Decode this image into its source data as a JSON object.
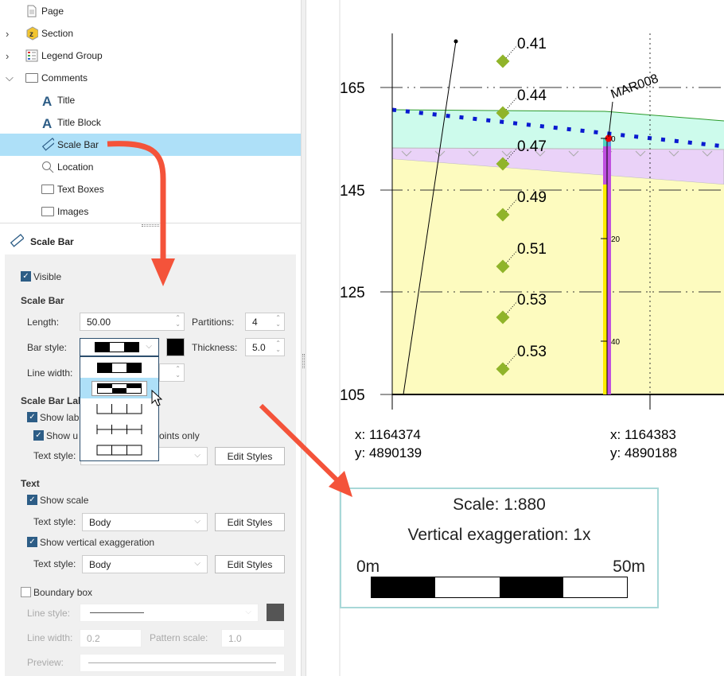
{
  "tree": {
    "items": [
      {
        "label": "Page",
        "icon": "page-icon",
        "expand": ""
      },
      {
        "label": "Section",
        "icon": "section-icon",
        "expand": "collapsed"
      },
      {
        "label": "Legend Group",
        "icon": "legend-icon",
        "expand": "collapsed"
      },
      {
        "label": "Comments",
        "icon": "folder-icon",
        "expand": "expanded"
      },
      {
        "label": "Title",
        "icon": "text-a-icon",
        "expand": ""
      },
      {
        "label": "Title Block",
        "icon": "text-a-icon",
        "expand": ""
      },
      {
        "label": "Scale Bar",
        "icon": "ruler-icon",
        "expand": "",
        "selected": true
      },
      {
        "label": "Location",
        "icon": "magnifier-icon",
        "expand": ""
      },
      {
        "label": "Text Boxes",
        "icon": "folder-icon",
        "expand": ""
      },
      {
        "label": "Images",
        "icon": "folder-icon",
        "expand": ""
      }
    ]
  },
  "props": {
    "title": "Scale Bar",
    "visible_label": "Visible",
    "scale_bar_heading": "Scale Bar",
    "length_label": "Length:",
    "length_value": "50.00",
    "partitions_label": "Partitions:",
    "partitions_value": "4",
    "bar_style_label": "Bar style:",
    "thickness_label": "Thickness:",
    "thickness_value": "5.0",
    "line_width_label": "Line width:",
    "labels_heading": "Scale Bar Labe",
    "show_labels": "Show lab",
    "show_units": "Show u",
    "show_units_tail": "oints only",
    "text_style_label": "Text style:",
    "edit_styles": "Edit Styles",
    "text_heading": "Text",
    "show_scale": "Show scale",
    "body": "Body",
    "show_ve": "Show vertical exaggeration",
    "boundary_box": "Boundary box",
    "line_style_label": "Line style:",
    "bb_line_width_label": "Line width:",
    "bb_line_width_value": "0.2",
    "pattern_scale_label": "Pattern scale:",
    "pattern_scale_value": "1.0",
    "preview_label": "Preview:",
    "bar_color": "#000000",
    "bar_style_options": [
      "alternating",
      "alternating-double",
      "ticks-up",
      "ticks-cross",
      "boxes"
    ],
    "bar_style_hovered": "alternating-double"
  },
  "section": {
    "y_ticks": [
      "165",
      "145",
      "125",
      "105"
    ],
    "samples": [
      "0.41",
      "0.44",
      "0.47",
      "0.49",
      "0.51",
      "0.53",
      "0.53"
    ],
    "hole_name": "MAR008",
    "depth_labels": [
      "0",
      "20",
      "40"
    ],
    "coord1": {
      "x": "x: 1164374",
      "y": "y: 4890139"
    },
    "coord2": {
      "x": "x: 1164383",
      "y": "y: 4890188"
    },
    "colors": {
      "cyan": "#cdfbec",
      "purple": "#ead2f8",
      "yellow": "#fdfbbf",
      "dotted_line": "#0a1ad0",
      "sample": "#90b42a"
    }
  },
  "scale_box": {
    "scale": "Scale: 1:880",
    "ve": "Vertical exaggeration: 1x",
    "left_label": "0m",
    "right_label": "50m",
    "border": "#a8d8d8"
  },
  "annot_color": "#f4533a"
}
